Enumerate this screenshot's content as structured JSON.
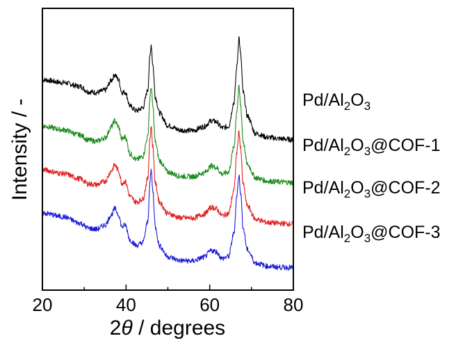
{
  "chart_data": {
    "type": "line",
    "title": "",
    "xlabel_parts": [
      "2",
      "θ",
      " / degrees"
    ],
    "ylabel": "Intensity / -",
    "xlim": [
      20,
      80
    ],
    "x_ticks": [
      20,
      40,
      60,
      80
    ],
    "x_tick_labels": [
      "20",
      "40",
      "60",
      "80"
    ],
    "y_ticks_labeled": false,
    "grid": false,
    "legend": "labels placed at the right of each curve",
    "series": [
      {
        "name": "Pd/Al2O3",
        "label_parts": [
          "Pd/Al",
          "2",
          "O",
          "3",
          ""
        ],
        "color": "#000000",
        "x": [
          20,
          25,
          29,
          31,
          33,
          35,
          36.5,
          37.3,
          38.2,
          39.0,
          39.8,
          41,
          42.5,
          44,
          45.2,
          45.7,
          46.0,
          46.4,
          47,
          48,
          50,
          53,
          56,
          58.5,
          60.5,
          61.5,
          63,
          64.5,
          65.8,
          66.5,
          67.0,
          67.4,
          68,
          69,
          71,
          74,
          77,
          80
        ],
        "y": [
          9.45,
          9.3,
          9.1,
          8.82,
          8.78,
          8.9,
          9.42,
          9.72,
          9.45,
          8.78,
          8.8,
          8.05,
          7.82,
          7.98,
          8.9,
          10.65,
          11.3,
          10.25,
          8.55,
          7.7,
          7.05,
          6.8,
          6.78,
          6.98,
          7.3,
          7.25,
          6.92,
          7.0,
          8.25,
          10.15,
          11.68,
          10.75,
          8.8,
          7.55,
          6.62,
          6.42,
          6.35,
          6.3
        ]
      },
      {
        "name": "Pd/Al2O3@COF-1",
        "label_parts": [
          "Pd/Al",
          "2",
          "O",
          "3",
          "@COF-1"
        ],
        "color": "#1a8a1a",
        "x": [
          20,
          25,
          29,
          31,
          33,
          35,
          36.5,
          37.3,
          38.2,
          39.0,
          39.8,
          41,
          42.5,
          44,
          45.2,
          45.7,
          46.0,
          46.4,
          47,
          48,
          50,
          53,
          56,
          58.5,
          60.5,
          61.5,
          63,
          64.5,
          65.8,
          66.5,
          67.0,
          67.4,
          68,
          69,
          71,
          74,
          77,
          80
        ],
        "y": [
          7.02,
          6.82,
          6.55,
          6.28,
          6.22,
          6.4,
          6.98,
          7.3,
          6.98,
          6.32,
          6.45,
          5.55,
          5.25,
          5.42,
          6.45,
          8.45,
          9.1,
          8.05,
          6.15,
          5.2,
          4.6,
          4.38,
          4.36,
          4.55,
          4.92,
          4.85,
          4.5,
          4.6,
          5.9,
          7.85,
          9.05,
          8.1,
          6.2,
          5.0,
          4.3,
          4.12,
          4.08,
          4.05
        ]
      },
      {
        "name": "Pd/Al2O3@COF-2",
        "label_parts": [
          "Pd/Al",
          "2",
          "O",
          "3",
          "@COF-2"
        ],
        "color": "#e02020",
        "x": [
          20,
          25,
          29,
          31,
          33,
          35,
          36.5,
          37.3,
          38.2,
          39.0,
          39.8,
          41,
          42.5,
          44,
          45.2,
          45.7,
          46.0,
          46.4,
          47,
          48,
          50,
          53,
          56,
          58.5,
          60.5,
          61.5,
          63,
          64.5,
          65.8,
          66.5,
          67.0,
          67.4,
          68,
          69,
          71,
          74,
          77,
          80
        ],
        "y": [
          4.72,
          4.52,
          4.25,
          3.98,
          3.94,
          4.12,
          4.66,
          4.98,
          4.68,
          4.02,
          4.1,
          3.3,
          3.02,
          3.18,
          4.25,
          6.35,
          7.0,
          5.95,
          4.0,
          3.02,
          2.42,
          2.2,
          2.18,
          2.38,
          2.75,
          2.68,
          2.32,
          2.42,
          3.65,
          5.65,
          6.75,
          5.8,
          3.95,
          2.82,
          2.12,
          1.95,
          1.9,
          1.88
        ]
      },
      {
        "name": "Pd/Al2O3@COF-3",
        "label_parts": [
          "Pd/Al",
          "2",
          "O",
          "3",
          "@COF-3"
        ],
        "color": "#1a1ad6",
        "x": [
          20,
          25,
          29,
          31,
          33,
          35,
          36.5,
          37.3,
          38.2,
          39.0,
          39.8,
          41,
          42.5,
          44,
          45.2,
          45.7,
          46.0,
          46.4,
          47,
          48,
          50,
          53,
          56,
          58.5,
          60.5,
          61.5,
          63,
          64.5,
          65.8,
          66.5,
          67.0,
          67.4,
          68,
          69,
          71,
          74,
          77,
          80
        ],
        "y": [
          2.45,
          2.25,
          1.92,
          1.65,
          1.6,
          1.82,
          2.36,
          2.68,
          2.38,
          1.72,
          1.82,
          1.02,
          0.74,
          0.9,
          1.98,
          4.05,
          4.7,
          3.62,
          1.7,
          0.72,
          0.15,
          -0.05,
          -0.07,
          0.12,
          0.48,
          0.42,
          0.06,
          0.16,
          1.38,
          3.38,
          4.45,
          3.5,
          1.66,
          0.52,
          -0.18,
          -0.35,
          -0.4,
          -0.42
        ]
      }
    ]
  }
}
